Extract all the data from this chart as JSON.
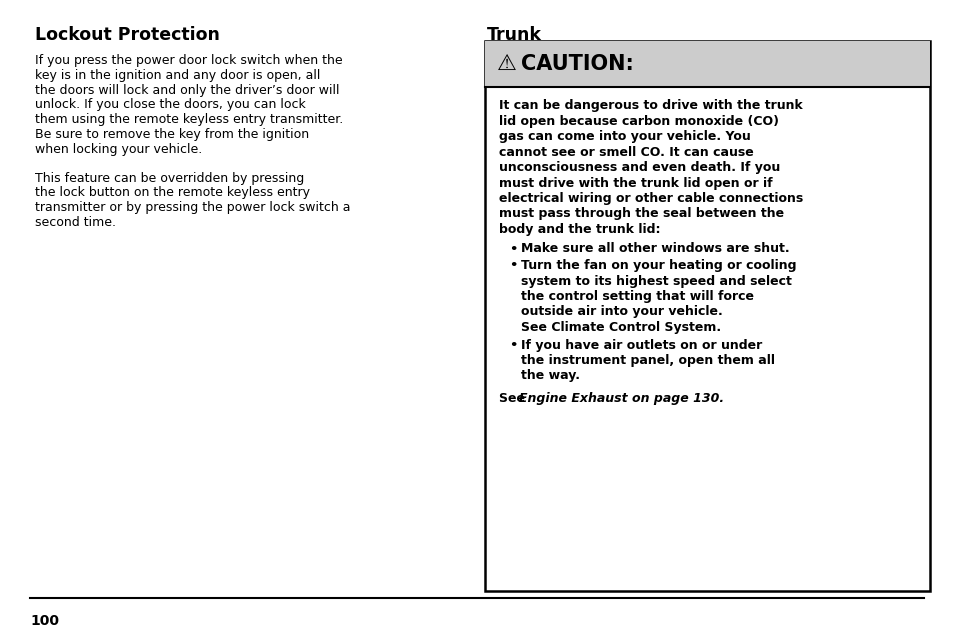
{
  "bg_color": "#ffffff",
  "page_number": "100",
  "left_title": "Lockout Protection",
  "left_para1_lines": [
    "If you press the power door lock switch when the",
    "key is in the ignition and any door is open, all",
    "the doors will lock and only the driver’s door will",
    "unlock. If you close the doors, you can lock",
    "them using the remote keyless entry transmitter.",
    "Be sure to remove the key from the ignition",
    "when locking your vehicle."
  ],
  "left_para2_lines": [
    "This feature can be overridden by pressing",
    "the lock button on the remote keyless entry",
    "transmitter or by pressing the power lock switch a",
    "second time."
  ],
  "right_title": "Trunk",
  "caution_bg": "#cccccc",
  "caution_triangle": "⚠",
  "caution_label": "CAUTION:",
  "body_lines": [
    "It can be dangerous to drive with the trunk",
    "lid open because carbon monoxide (CO)",
    "gas can come into your vehicle. You",
    "cannot see or smell CO. It can cause",
    "unconsciousness and even death. If you",
    "must drive with the trunk lid open or if",
    "electrical wiring or other cable connections",
    "must pass through the seal between the",
    "body and the trunk lid:"
  ],
  "bullet1": "Make sure all other windows are shut.",
  "bullet2_lines": [
    "Turn the fan on your heating or cooling",
    "system to its highest speed and select",
    "the control setting that will force",
    "outside air into your vehicle.",
    "See Climate Control System."
  ],
  "bullet3_lines": [
    "If you have air outlets on or under",
    "the instrument panel, open them all",
    "the way."
  ],
  "see_normal": "See ",
  "see_italic": "Engine Exhaust on page 130.",
  "border_color": "#000000",
  "text_color": "#000000"
}
